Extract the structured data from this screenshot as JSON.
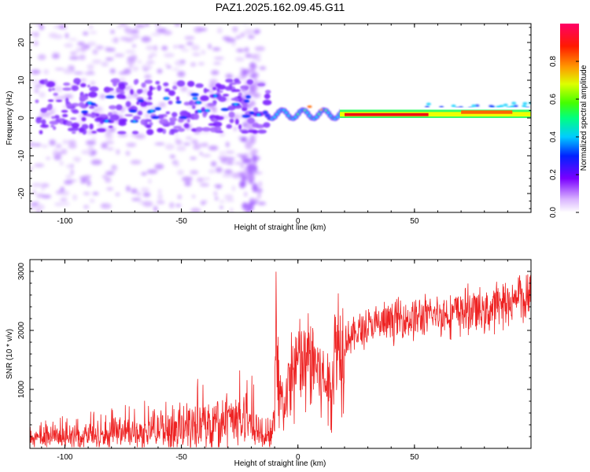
{
  "figure_title": "PAZ1.2025.162.09.45.G11",
  "chart_data": [
    {
      "type": "heatmap",
      "title": "",
      "xlabel": "Height of straight line (km)",
      "ylabel": "Frequency (Hz)",
      "xlim": [
        -115,
        100
      ],
      "ylim": [
        -25,
        25
      ],
      "xticks": [
        -100,
        -50,
        0,
        50
      ],
      "yticks": [
        -20,
        -10,
        0,
        10,
        20
      ],
      "colorbar": {
        "label": "Normalized spectral amplitude",
        "range": [
          0,
          1
        ],
        "ticks": [
          "0.0",
          "0.2",
          "0.4",
          "0.6",
          "0.8"
        ],
        "colormap": "rainbow (white-purple-blue-cyan-green-yellow-orange-red-magenta)"
      },
      "features": [
        {
          "description": "scattered weak-to-moderate energy (purple/blue) spread over -25 to 25 Hz",
          "x_range": [
            -115,
            -15
          ]
        },
        {
          "description": "dense patch near 0 to 10 Hz",
          "x_range": [
            -100,
            -20
          ],
          "y_range": [
            -5,
            10
          ]
        },
        {
          "description": "vertical streak of energy near -20 km",
          "x_range": [
            -25,
            -18
          ],
          "y_range": [
            -25,
            15
          ]
        },
        {
          "description": "narrow band near 0-3 Hz with increasing amplitude",
          "x_range": [
            -15,
            20
          ]
        },
        {
          "description": "strong red narrow line centered near 1 Hz",
          "x_range": [
            20,
            55
          ],
          "y_center": 1,
          "amplitude": 1.0
        },
        {
          "description": "green/yellow line near 1-2 Hz",
          "x_range": [
            55,
            100
          ],
          "y_center": 1.5,
          "amplitude": 0.6
        }
      ]
    },
    {
      "type": "line",
      "title": "",
      "xlabel": "Height of straight line (km)",
      "ylabel": "SNR (10 * v/v)",
      "xlim": [
        -115,
        100
      ],
      "ylim": [
        0,
        3200
      ],
      "xticks": [
        -100,
        -50,
        0,
        50
      ],
      "yticks": [
        1000,
        2000,
        3000
      ],
      "color": "#ee2222",
      "series": [
        {
          "x": [
            -115,
            -110,
            -105,
            -100,
            -95,
            -90,
            -85,
            -80,
            -75,
            -70,
            -65,
            -60,
            -55,
            -50,
            -45,
            -40,
            -35,
            -30,
            -25,
            -20,
            -15,
            -12,
            -10,
            -9,
            -8,
            -7,
            -6,
            -5,
            -3,
            0,
            3,
            5,
            8,
            10,
            12,
            14,
            16,
            20,
            25,
            30,
            35,
            40,
            45,
            50,
            55,
            60,
            65,
            70,
            75,
            80,
            85,
            90,
            93,
            95,
            97,
            100
          ],
          "values": [
            150,
            160,
            170,
            180,
            190,
            200,
            210,
            230,
            250,
            270,
            290,
            310,
            330,
            350,
            370,
            400,
            430,
            460,
            500,
            420,
            150,
            250,
            500,
            2200,
            900,
            800,
            700,
            900,
            1200,
            1450,
            1400,
            1500,
            1450,
            1250,
            1100,
            1000,
            1700,
            1850,
            1950,
            2050,
            2100,
            2150,
            2200,
            2200,
            2230,
            2260,
            2280,
            2320,
            2350,
            2300,
            2400,
            2450,
            2500,
            2700,
            2450,
            2600
          ]
        }
      ]
    }
  ]
}
